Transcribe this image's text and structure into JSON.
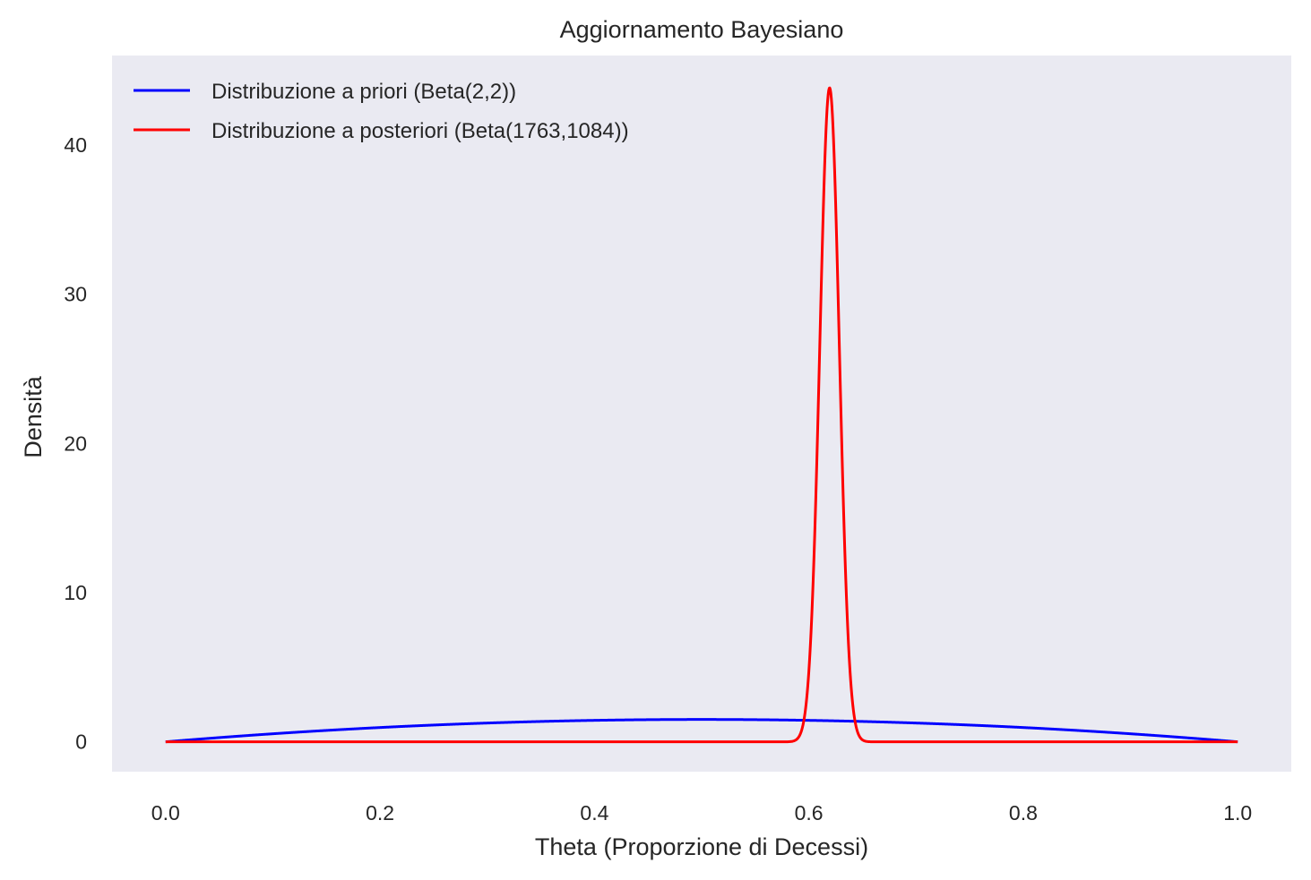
{
  "chart_data": {
    "type": "line",
    "title": "Aggiornamento Bayesiano",
    "xlabel": "Theta (Proporzione di Decessi)",
    "ylabel": "Densità",
    "xlim": [
      -0.05,
      1.05
    ],
    "ylim": [
      -2.0,
      46.0
    ],
    "xticks": [
      0.0,
      0.2,
      0.4,
      0.6,
      0.8,
      1.0
    ],
    "xtick_labels": [
      "0.0",
      "0.2",
      "0.4",
      "0.6",
      "0.8",
      "1.0"
    ],
    "yticks": [
      0,
      10,
      20,
      30,
      40
    ],
    "ytick_labels": [
      "0",
      "10",
      "20",
      "30",
      "40"
    ],
    "grid": false,
    "background": "#eaeaf2",
    "legend": {
      "placement": "top-left"
    },
    "series": [
      {
        "name": "Distribuzione a priori (Beta(2,2))",
        "color": "#0000ff",
        "dist": "beta",
        "a": 2,
        "b": 2
      },
      {
        "name": "Distribuzione a posteriori (Beta(1763,1084))",
        "color": "#ff0000",
        "dist": "beta",
        "a": 1763,
        "b": 1084
      }
    ]
  }
}
